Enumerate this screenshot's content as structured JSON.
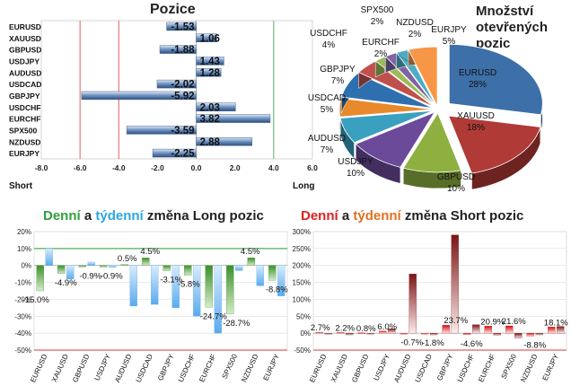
{
  "chart_data": [
    {
      "type": "bar",
      "orientation": "horizontal",
      "title": "Pozice",
      "categories": [
        "EURUSD",
        "XAUUSD",
        "GBPUSD",
        "USDJPY",
        "AUDUSD",
        "USDCAD",
        "GBPJPY",
        "USDCHF",
        "EURCHF",
        "SPX500",
        "NZDUSD",
        "EURJPY"
      ],
      "values": [
        -1.53,
        1.06,
        -1.88,
        1.43,
        1.28,
        -2.02,
        -5.92,
        2.03,
        3.82,
        -3.59,
        2.88,
        -2.25
      ],
      "value_labels": [
        "-1.53",
        "1.06",
        "-1.88",
        "1.43",
        "1.28",
        "-2.02",
        "-5.92",
        "2.03",
        "3.82",
        "-3.59",
        "2.88",
        "-2.25"
      ],
      "xlim": [
        -8,
        6
      ],
      "ticks": [
        -8,
        -6,
        -4,
        -2,
        0,
        2,
        4,
        6
      ],
      "tick_labels": [
        "-8.0",
        "-6.0",
        "-4.0",
        "-2.0",
        "0.0",
        "2.0",
        "4.0",
        "6.0"
      ],
      "short_label": "Short",
      "long_label": "Long",
      "reference_lines": [
        -6,
        -4,
        4
      ],
      "colors": {
        "bar": "#6a8fc0",
        "bar_dark": "#2f4f7a",
        "line_red": "#e06060",
        "line_green": "#60b060"
      }
    },
    {
      "type": "pie",
      "title": "Množství otevřených pozic",
      "title_lines": [
        "Množství",
        "otevřených",
        "pozic"
      ],
      "slices": [
        {
          "name": "EURUSD",
          "pct_label": "28%",
          "value": 28,
          "color": "#3d6fa8"
        },
        {
          "name": "XAUUSD",
          "pct_label": "18%",
          "value": 18,
          "color": "#b03a36"
        },
        {
          "name": "GBPUSD",
          "pct_label": "10%",
          "value": 10,
          "color": "#8db040"
        },
        {
          "name": "USDJPY",
          "pct_label": "10%",
          "value": 10,
          "color": "#6b4a9a"
        },
        {
          "name": "AUDUSD",
          "pct_label": "7%",
          "value": 7,
          "color": "#3aa0c0"
        },
        {
          "name": "USDCAD",
          "pct_label": "5%",
          "value": 5,
          "color": "#e8892c"
        },
        {
          "name": "GBPJPY",
          "pct_label": "7%",
          "value": 7,
          "color": "#2e6fb0"
        },
        {
          "name": "USDCHF",
          "pct_label": "4%",
          "value": 4,
          "color": "#c0504d"
        },
        {
          "name": "EURCHF",
          "pct_label": "2%",
          "value": 2,
          "color": "#9bbb59"
        },
        {
          "name": "SPX500",
          "pct_label": "2%",
          "value": 2,
          "color": "#8064a2"
        },
        {
          "name": "NZDUSD",
          "pct_label": "2%",
          "value": 2,
          "color": "#4bacc6"
        },
        {
          "name": "EURJPY",
          "pct_label": "5%",
          "value": 5,
          "color": "#f79646"
        }
      ]
    },
    {
      "type": "bar",
      "title_parts": [
        {
          "text": "Denní",
          "color": "#2e9e3e"
        },
        {
          "text": " a ",
          "color": "#222222"
        },
        {
          "text": "týdenní",
          "color": "#2aa6e6"
        },
        {
          "text": " změna Long pozic",
          "color": "#222222"
        }
      ],
      "categories": [
        "EURUSD",
        "XAUUSD",
        "GBPUSD",
        "USDJPY",
        "AUDUSD",
        "USDCAD",
        "GBPJPY",
        "USDCHF",
        "EURCHF",
        "SPX500",
        "NZDUSD",
        "EURJPY"
      ],
      "series": [
        {
          "name": "Denní",
          "color": "#3a8f2a",
          "values": [
            -15.0,
            -4.9,
            -0.9,
            -0.9,
            0.5,
            4.5,
            -3.1,
            -5.8,
            -24.7,
            -28.7,
            4.5,
            -8.8
          ]
        },
        {
          "name": "týdenní",
          "color": "#5aaaf0",
          "values": [
            10,
            -8,
            2,
            -1,
            -24,
            -23,
            -25,
            -30,
            -40,
            -3,
            -12,
            -18
          ]
        }
      ],
      "value_labels": [
        "-15.0%",
        "-4.9%",
        "-0.9%",
        "-0.9%",
        "0.5%",
        "4.5%",
        "-3.1%",
        "-5.8%",
        "-24.7%",
        "-28.7%",
        "4.5%",
        "-8.8%"
      ],
      "ylim": [
        -50,
        20
      ],
      "ticks": [
        20,
        10,
        0,
        -10,
        -20,
        -30,
        -40,
        -50
      ],
      "tick_labels": [
        "20%",
        "10%",
        "0%",
        "-10%",
        "-20%",
        "-30%",
        "-40%",
        "-50%"
      ],
      "reference_lines": [
        {
          "value": 10,
          "color": "#4caf50"
        },
        {
          "value": -50,
          "color": "#e06060"
        }
      ]
    },
    {
      "type": "bar",
      "title_parts": [
        {
          "text": "Denní",
          "color": "#e02020"
        },
        {
          "text": " a ",
          "color": "#222222"
        },
        {
          "text": "týdenní",
          "color": "#e07020"
        },
        {
          "text": " změna Short pozic",
          "color": "#222222"
        }
      ],
      "categories": [
        "EURUSD",
        "XAUUSD",
        "GBPUSD",
        "USDJPY",
        "AUDUSD",
        "USDCAD",
        "GBPJPY",
        "USDCHF",
        "EURCHF",
        "SPX500",
        "NZDUSD",
        "EURJPY"
      ],
      "series": [
        {
          "name": "Denní",
          "color": "#d01010",
          "values": [
            2.7,
            2.2,
            0.8,
            6.0,
            -0.7,
            -1.8,
            23.7,
            -4.6,
            20.9,
            21.6,
            -8.8,
            18.1
          ]
        },
        {
          "name": "týdenní",
          "color": "#8b1a1a",
          "values": [
            -3,
            -5,
            -2,
            13,
            175,
            -5,
            290,
            25,
            -6,
            -15,
            -5,
            20
          ]
        }
      ],
      "value_labels": [
        "2.7%",
        "2.2%",
        "0.8%",
        "6.0%",
        "-0.7%",
        "-1.8%",
        "23.7%",
        "-4.6%",
        "20.9%",
        "21.6%",
        "-8.8%",
        "18.1%"
      ],
      "ylim": [
        -50,
        300
      ],
      "ticks": [
        300,
        250,
        200,
        150,
        100,
        50,
        0,
        -50
      ],
      "tick_labels": [
        "300%",
        "250%",
        "200%",
        "150%",
        "100%",
        "50%",
        "0%",
        "-50%"
      ],
      "reference_lines": [
        {
          "value": -50,
          "color": "#e06060"
        }
      ]
    }
  ]
}
